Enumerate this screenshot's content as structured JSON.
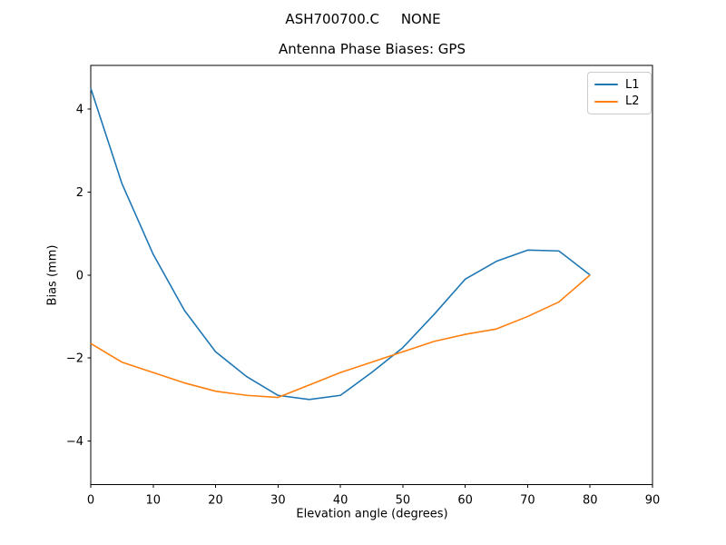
{
  "chart_data": {
    "type": "line",
    "suptitle": "ASH700700.C     NONE",
    "title": "Antenna Phase Biases: GPS",
    "xlabel": "Elevation angle (degrees)",
    "ylabel": "Bias (mm)",
    "xlim": [
      0,
      90
    ],
    "ylim": [
      -5.05,
      5.05
    ],
    "xticks": [
      0,
      10,
      20,
      30,
      40,
      50,
      60,
      70,
      80,
      90
    ],
    "yticks": [
      -4,
      -2,
      0,
      2,
      4
    ],
    "grid": false,
    "legend": {
      "position": "upper right",
      "entries": [
        "L1",
        "L2"
      ]
    },
    "x": [
      0,
      5,
      10,
      15,
      20,
      25,
      30,
      35,
      40,
      45,
      50,
      55,
      60,
      65,
      70,
      75,
      80
    ],
    "series": [
      {
        "name": "L1",
        "color": "#1f77b4",
        "values": [
          4.5,
          2.2,
          0.5,
          -0.85,
          -1.85,
          -2.45,
          -2.9,
          -3.0,
          -2.9,
          -2.35,
          -1.75,
          -0.95,
          -0.1,
          0.33,
          0.6,
          0.58,
          0.0
        ]
      },
      {
        "name": "L2",
        "color": "#ff7f0e",
        "values": [
          -1.65,
          -2.1,
          -2.35,
          -2.6,
          -2.8,
          -2.9,
          -2.95,
          -2.65,
          -2.35,
          -2.1,
          -1.85,
          -1.6,
          -1.43,
          -1.3,
          -1.0,
          -0.65,
          0.0
        ]
      }
    ]
  }
}
